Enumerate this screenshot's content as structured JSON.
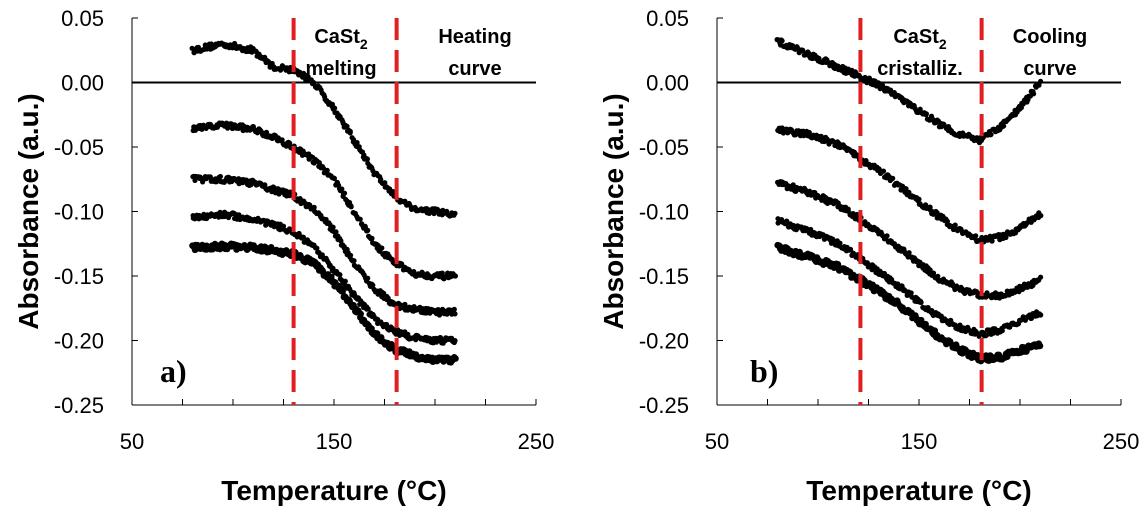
{
  "chart_data": [
    {
      "type": "scatter",
      "panel_label": "a)",
      "xlabel": "Temperature (°C)",
      "ylabel": "Absorbance (a.u.)",
      "xlim": [
        50,
        250
      ],
      "ylim": [
        -0.25,
        0.05
      ],
      "xticks": [
        "50",
        "150",
        "250"
      ],
      "yticks": [
        "0.05",
        "0.00",
        "-0.05",
        "-0.10",
        "-0.15",
        "-0.20",
        "-0.25"
      ],
      "zero_line": 0,
      "vlines": [
        130,
        181
      ],
      "vline_color": "#e02020",
      "marker_color": "#000000",
      "annotations": {
        "left_main": "CaSt",
        "left_sub": "2",
        "left_line2": "melting",
        "right_line1": "Heating",
        "right_line2": "curve"
      },
      "series": [
        {
          "x": [
            80,
            95,
            110,
            120,
            130,
            140,
            150,
            160,
            170,
            180,
            190,
            200,
            210
          ],
          "values": [
            0.025,
            0.03,
            0.025,
            0.012,
            0.01,
            0.0,
            -0.02,
            -0.045,
            -0.07,
            -0.088,
            -0.098,
            -0.1,
            -0.103
          ]
        },
        {
          "x": [
            80,
            95,
            110,
            120,
            130,
            140,
            150,
            160,
            170,
            180,
            190,
            200,
            210
          ],
          "values": [
            -0.036,
            -0.033,
            -0.036,
            -0.042,
            -0.05,
            -0.06,
            -0.075,
            -0.1,
            -0.125,
            -0.14,
            -0.148,
            -0.15,
            -0.15
          ]
        },
        {
          "x": [
            80,
            95,
            110,
            120,
            130,
            140,
            150,
            160,
            170,
            180,
            190,
            200,
            210
          ],
          "values": [
            -0.075,
            -0.075,
            -0.078,
            -0.083,
            -0.088,
            -0.098,
            -0.115,
            -0.14,
            -0.16,
            -0.172,
            -0.176,
            -0.178,
            -0.178
          ]
        },
        {
          "x": [
            80,
            95,
            110,
            120,
            130,
            140,
            150,
            160,
            170,
            180,
            190,
            200,
            210
          ],
          "values": [
            -0.105,
            -0.102,
            -0.106,
            -0.11,
            -0.116,
            -0.128,
            -0.145,
            -0.165,
            -0.183,
            -0.193,
            -0.198,
            -0.2,
            -0.2
          ]
        },
        {
          "x": [
            80,
            95,
            110,
            120,
            130,
            140,
            150,
            160,
            170,
            180,
            190,
            200,
            210
          ],
          "values": [
            -0.128,
            -0.127,
            -0.128,
            -0.13,
            -0.133,
            -0.14,
            -0.155,
            -0.175,
            -0.195,
            -0.207,
            -0.212,
            -0.215,
            -0.215
          ]
        }
      ]
    },
    {
      "type": "scatter",
      "panel_label": "b)",
      "xlabel": "Temperature (°C)",
      "ylabel": "Absorbance (a.u.)",
      "xlim": [
        50,
        250
      ],
      "ylim": [
        -0.25,
        0.05
      ],
      "xticks": [
        "50",
        "150",
        "250"
      ],
      "yticks": [
        "0.05",
        "0.00",
        "-0.05",
        "-0.10",
        "-0.15",
        "-0.20",
        "-0.25"
      ],
      "zero_line": 0,
      "vlines": [
        121,
        181
      ],
      "vline_color": "#e02020",
      "marker_color": "#000000",
      "annotations": {
        "left_main": "CaSt",
        "left_sub": "2",
        "left_line2": "cristalliz.",
        "right_line1": "Cooling",
        "right_line2": "curve"
      },
      "series": [
        {
          "x": [
            80,
            95,
            110,
            120,
            130,
            140,
            150,
            160,
            170,
            180,
            190,
            200,
            210
          ],
          "values": [
            0.032,
            0.022,
            0.012,
            0.005,
            -0.002,
            -0.012,
            -0.022,
            -0.032,
            -0.04,
            -0.045,
            -0.035,
            -0.02,
            0.0
          ]
        },
        {
          "x": [
            80,
            95,
            110,
            120,
            130,
            140,
            150,
            160,
            170,
            180,
            190,
            200,
            210
          ],
          "values": [
            -0.037,
            -0.04,
            -0.048,
            -0.058,
            -0.068,
            -0.08,
            -0.092,
            -0.104,
            -0.115,
            -0.122,
            -0.12,
            -0.113,
            -0.102
          ]
        },
        {
          "x": [
            80,
            95,
            110,
            120,
            130,
            140,
            150,
            160,
            170,
            180,
            190,
            200,
            210
          ],
          "values": [
            -0.078,
            -0.085,
            -0.095,
            -0.105,
            -0.116,
            -0.128,
            -0.14,
            -0.152,
            -0.16,
            -0.165,
            -0.165,
            -0.16,
            -0.153
          ]
        },
        {
          "x": [
            80,
            95,
            110,
            120,
            130,
            140,
            150,
            160,
            170,
            180,
            190,
            200,
            210
          ],
          "values": [
            -0.107,
            -0.115,
            -0.125,
            -0.135,
            -0.147,
            -0.158,
            -0.17,
            -0.182,
            -0.19,
            -0.195,
            -0.192,
            -0.185,
            -0.178
          ]
        },
        {
          "x": [
            80,
            95,
            110,
            120,
            130,
            140,
            150,
            160,
            170,
            180,
            190,
            200,
            210
          ],
          "values": [
            -0.128,
            -0.135,
            -0.143,
            -0.152,
            -0.162,
            -0.172,
            -0.185,
            -0.197,
            -0.207,
            -0.214,
            -0.213,
            -0.208,
            -0.203
          ]
        }
      ]
    }
  ]
}
